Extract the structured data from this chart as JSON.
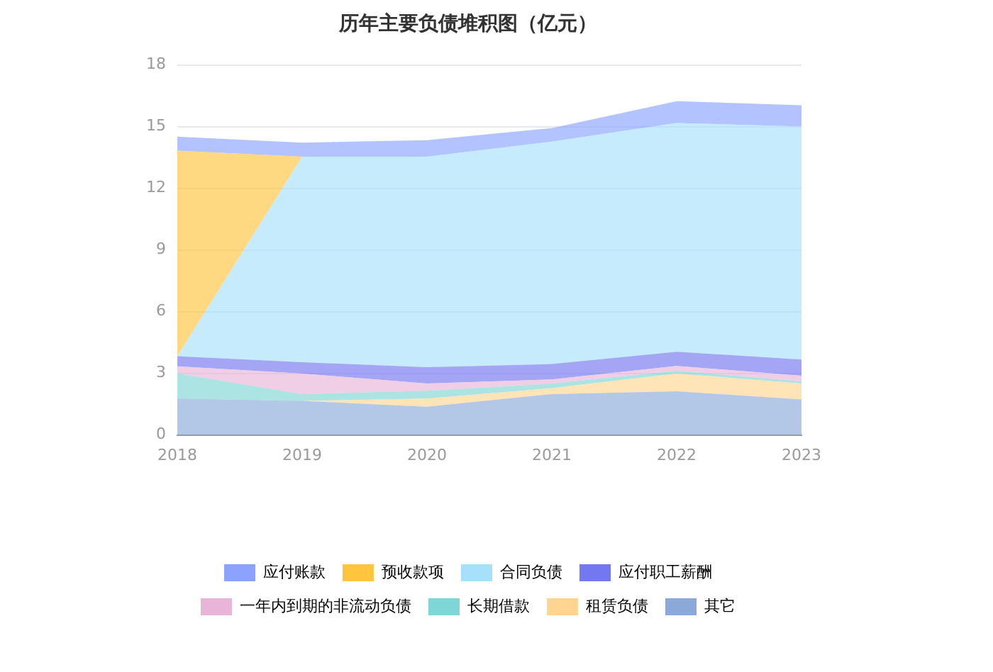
{
  "chart_data": {
    "type": "area",
    "title": "历年主要负债堆积图（亿元）",
    "categories": [
      "2018",
      "2019",
      "2020",
      "2021",
      "2022",
      "2023"
    ],
    "stacked": true,
    "ylim": [
      0,
      18
    ],
    "yticks": [
      0,
      3,
      6,
      9,
      12,
      15,
      18
    ],
    "grid": "y",
    "legend": "bottom",
    "series": [
      {
        "name": "其它",
        "color": "#8aa9d8",
        "values": [
          1.77,
          1.66,
          1.37,
          1.99,
          2.12,
          1.73
        ]
      },
      {
        "name": "租赁负债",
        "color": "#ffd591",
        "values": [
          0,
          0,
          0.4,
          0.29,
          0.87,
          0.77
        ]
      },
      {
        "name": "长期借款",
        "color": "#7fd6d6",
        "values": [
          1.22,
          0.33,
          0.38,
          0.22,
          0.13,
          0.11
        ]
      },
      {
        "name": "一年内到期的非流动负债",
        "color": "#e8b4d8",
        "values": [
          0.35,
          1.0,
          0.35,
          0.2,
          0.24,
          0.27
        ]
      },
      {
        "name": "应付职工薪酬",
        "color": "#7377f0",
        "values": [
          0.49,
          0.55,
          0.8,
          0.75,
          0.69,
          0.79
        ]
      },
      {
        "name": "合同负债",
        "color": "#a6e0fb",
        "values": [
          0,
          10.0,
          10.24,
          10.82,
          11.13,
          11.33
        ]
      },
      {
        "name": "预收款项",
        "color": "#ffc53d",
        "values": [
          10.0,
          0,
          0,
          0,
          0,
          0
        ]
      },
      {
        "name": "应付账款",
        "color": "#8ba3ff",
        "values": [
          0.68,
          0.68,
          0.8,
          0.66,
          1.06,
          1.04
        ]
      }
    ]
  }
}
